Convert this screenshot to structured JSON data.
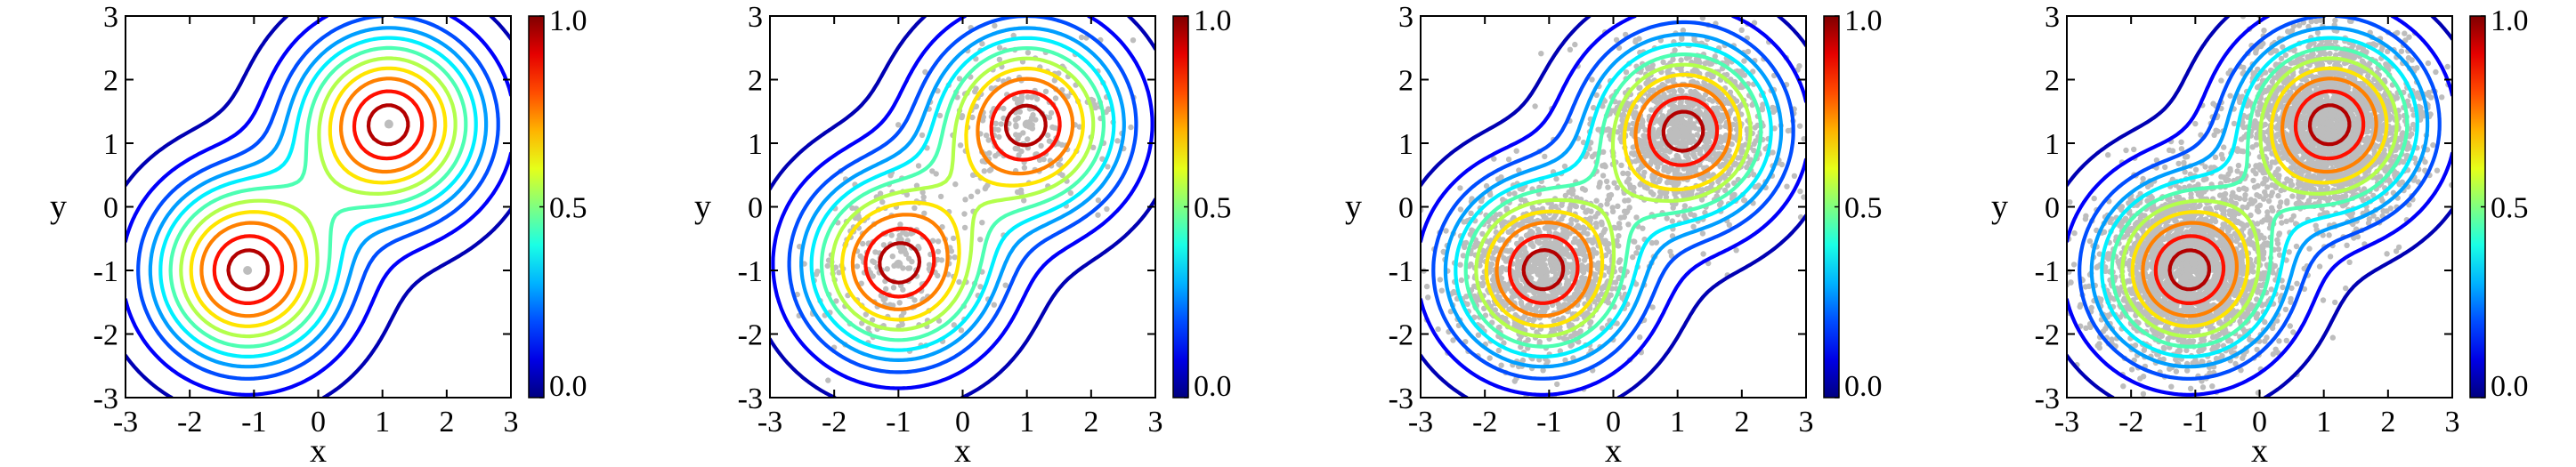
{
  "chart_data": [
    {
      "type": "contour",
      "panel": "analytic",
      "xlabel": "x",
      "ylabel": "y",
      "xlim": [
        -3,
        3
      ],
      "ylim": [
        -3,
        3
      ],
      "xticks": [
        "-3",
        "-2",
        "-1",
        "0",
        "1",
        "2",
        "3"
      ],
      "yticks": [
        "-3",
        "-2",
        "-1",
        "0",
        "1",
        "2",
        "3"
      ],
      "colorbar": {
        "range": [
          0.0,
          1.0
        ],
        "tick_labels": [
          "1.0",
          "0.5",
          "0.0"
        ],
        "colormap": "jet"
      },
      "density": {
        "modes": [
          {
            "center": [
              -1.1,
              -1.0
            ],
            "weight": 1.0
          },
          {
            "center": [
              1.1,
              1.3
            ],
            "weight": 1.0
          }
        ],
        "sigma": 0.95
      },
      "levels": [
        0.05,
        0.12,
        0.2,
        0.28,
        0.36,
        0.45,
        0.55,
        0.65,
        0.75,
        0.86,
        0.95
      ],
      "samples": 0,
      "scatter_color": "#bdbdbd"
    },
    {
      "type": "contour",
      "panel": "sparse-samples",
      "xlabel": "x",
      "ylabel": "y",
      "xlim": [
        -3,
        3
      ],
      "ylim": [
        -3,
        3
      ],
      "xticks": [
        "-3",
        "-2",
        "-1",
        "0",
        "1",
        "2",
        "3"
      ],
      "yticks": [
        "-3",
        "-2",
        "-1",
        "0",
        "1",
        "2",
        "3"
      ],
      "colorbar": {
        "range": [
          0.0,
          1.0
        ],
        "tick_labels": [
          "1.0",
          "0.5",
          "0.0"
        ],
        "colormap": "jet"
      },
      "density": {
        "modes": [
          {
            "center": [
              -1.0,
              -0.9
            ],
            "weight": 1.0
          },
          {
            "center": [
              1.0,
              1.3
            ],
            "weight": 1.0
          }
        ],
        "sigma": 0.95
      },
      "levels": [
        0.05,
        0.12,
        0.2,
        0.28,
        0.36,
        0.45,
        0.55,
        0.65,
        0.75,
        0.86,
        0.95
      ],
      "samples": 500,
      "scatter_color": "#bdbdbd"
    },
    {
      "type": "contour",
      "panel": "medium-samples",
      "xlabel": "x",
      "ylabel": "y",
      "xlim": [
        -3,
        3
      ],
      "ylim": [
        -3,
        3
      ],
      "xticks": [
        "-3",
        "-2",
        "-1",
        "0",
        "1",
        "2",
        "3"
      ],
      "yticks": [
        "-3",
        "-2",
        "-1",
        "0",
        "1",
        "2",
        "3"
      ],
      "colorbar": {
        "range": [
          0.0,
          1.0
        ],
        "tick_labels": [
          "1.0",
          "0.5",
          "0.0"
        ],
        "colormap": "jet"
      },
      "density": {
        "modes": [
          {
            "center": [
              -1.1,
              -1.0
            ],
            "weight": 1.0
          },
          {
            "center": [
              1.1,
              1.2
            ],
            "weight": 1.0
          }
        ],
        "sigma": 0.95
      },
      "levels": [
        0.05,
        0.12,
        0.2,
        0.28,
        0.36,
        0.45,
        0.55,
        0.65,
        0.75,
        0.86,
        0.95
      ],
      "samples": 2500,
      "scatter_color": "#bdbdbd"
    },
    {
      "type": "contour",
      "panel": "dense-samples",
      "xlabel": "x",
      "ylabel": "y",
      "xlim": [
        -3,
        3
      ],
      "ylim": [
        -3,
        3
      ],
      "xticks": [
        "-3",
        "-2",
        "-1",
        "0",
        "1",
        "2",
        "3"
      ],
      "yticks": [
        "-3",
        "-2",
        "-1",
        "0",
        "1",
        "2",
        "3"
      ],
      "colorbar": {
        "range": [
          0.0,
          1.0
        ],
        "tick_labels": [
          "1.0",
          "0.5",
          "0.0"
        ],
        "colormap": "jet"
      },
      "density": {
        "modes": [
          {
            "center": [
              -1.1,
              -1.0
            ],
            "weight": 1.0
          },
          {
            "center": [
              1.1,
              1.3
            ],
            "weight": 1.0
          }
        ],
        "sigma": 0.95
      },
      "levels": [
        0.05,
        0.12,
        0.2,
        0.28,
        0.36,
        0.45,
        0.55,
        0.65,
        0.75,
        0.86,
        0.95
      ],
      "samples": 5000,
      "scatter_color": "#bdbdbd"
    }
  ]
}
